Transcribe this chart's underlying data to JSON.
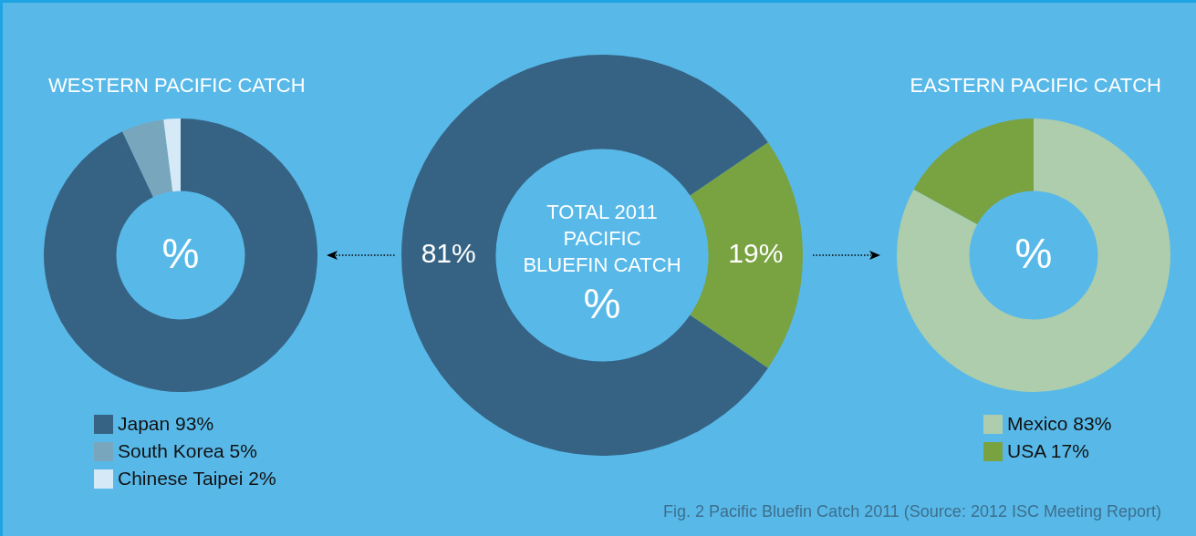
{
  "chart_data": [
    {
      "type": "donut",
      "title": "WESTERN PACIFIC CATCH",
      "subtitle": "%",
      "categories": [
        "Japan 93%",
        "South Korea 5%",
        "Chinese Taipei 2%"
      ],
      "values": [
        93,
        5,
        2
      ],
      "colors": [
        "#366384",
        "#78a6bc",
        "#d6e9f7"
      ],
      "legend": "bottom"
    },
    {
      "type": "donut",
      "title": "TOTAL 2011 PACIFIC BLUEFIN CATCH",
      "subtitle": "%",
      "categories": [
        null,
        null
      ],
      "values": [
        81,
        19
      ],
      "colors": [
        "#366384",
        "#79a241"
      ],
      "value_labels": [
        "81%",
        "19%"
      ],
      "annotations": [
        "Fig. 2  Pacific Bluefin Catch 2011 (Source: 2012 ISC Meeting Report)"
      ]
    },
    {
      "type": "donut",
      "title": "EASTERN PACIFIC CATCH",
      "subtitle": "%",
      "categories": [
        "Mexico 83%",
        "USA 17%"
      ],
      "values": [
        83,
        17
      ],
      "colors": [
        "#adcdac",
        "#79a241"
      ],
      "legend": "bottom"
    }
  ]
}
